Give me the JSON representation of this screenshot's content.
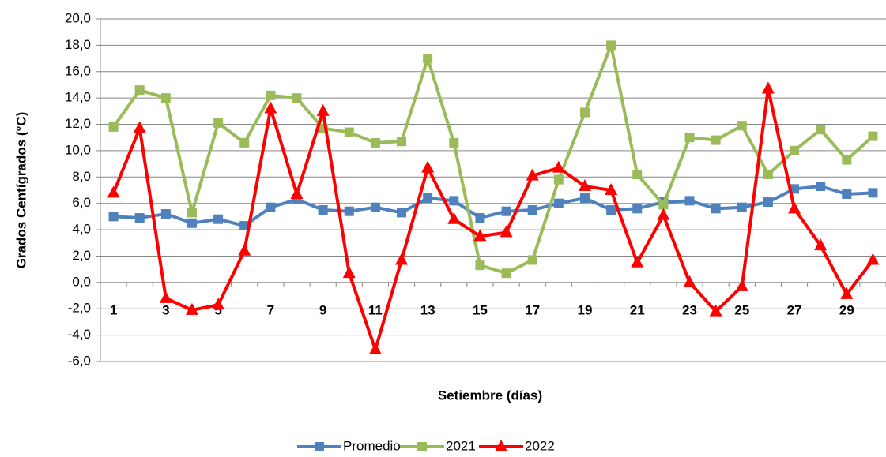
{
  "chart_data": {
    "type": "line",
    "y_label": "Grados Centígrados (°C)",
    "x_label": "Setiembre (días)",
    "categories": [
      "1",
      null,
      "3",
      null,
      "5",
      null,
      "7",
      null,
      "9",
      null,
      "11",
      null,
      "13",
      null,
      "15",
      null,
      "17",
      null,
      "19",
      null,
      "21",
      null,
      "23",
      null,
      "25",
      null,
      "27",
      null,
      "29",
      null
    ],
    "series": [
      {
        "name": "Promedio",
        "color": "#4f81bd",
        "marker": "square",
        "values": [
          5.0,
          4.9,
          5.2,
          4.5,
          4.8,
          4.3,
          5.7,
          6.3,
          5.5,
          5.4,
          5.7,
          5.3,
          6.4,
          6.2,
          4.9,
          5.4,
          5.5,
          6.0,
          6.4,
          5.5,
          5.6,
          6.1,
          6.2,
          5.6,
          5.7,
          6.1,
          7.1,
          7.3,
          6.7,
          6.8
        ]
      },
      {
        "name": "2021",
        "color": "#9bbb59",
        "marker": "square",
        "values": [
          11.8,
          14.6,
          14.0,
          5.3,
          12.1,
          10.6,
          14.2,
          14.0,
          11.7,
          11.4,
          10.6,
          10.7,
          17.0,
          10.6,
          1.3,
          0.7,
          1.7,
          7.8,
          12.9,
          18.0,
          8.2,
          5.9,
          11.0,
          10.8,
          11.9,
          8.2,
          10.0,
          11.6,
          9.3,
          11.1
        ]
      },
      {
        "name": "2022",
        "color": "#ff0000",
        "marker": "triangle",
        "values": [
          6.8,
          11.7,
          -1.2,
          -2.1,
          -1.7,
          2.4,
          13.2,
          6.7,
          13.0,
          0.7,
          -5.1,
          1.7,
          8.7,
          4.8,
          3.5,
          3.8,
          8.1,
          8.7,
          7.3,
          7.0,
          1.5,
          5.1,
          0.0,
          -2.2,
          -0.3,
          14.7,
          5.6,
          2.8,
          -0.9,
          1.7
        ]
      }
    ],
    "ylim": [
      -6,
      20
    ],
    "yticks": [
      {
        "value": -6,
        "label": "-6,0"
      },
      {
        "value": -4,
        "label": "-4,0"
      },
      {
        "value": -2,
        "label": "-2,0"
      },
      {
        "value": 0,
        "label": "0,0"
      },
      {
        "value": 2,
        "label": "2,0"
      },
      {
        "value": 4,
        "label": "4,0"
      },
      {
        "value": 6,
        "label": "6,0"
      },
      {
        "value": 8,
        "label": "8,0"
      },
      {
        "value": 10,
        "label": "10,0"
      },
      {
        "value": 12,
        "label": "12,0"
      },
      {
        "value": 14,
        "label": "14,0"
      },
      {
        "value": 16,
        "label": "16,0"
      },
      {
        "value": 18,
        "label": "18,0"
      },
      {
        "value": 20,
        "label": "20,0"
      }
    ],
    "grid": true,
    "legend": "bottom"
  }
}
